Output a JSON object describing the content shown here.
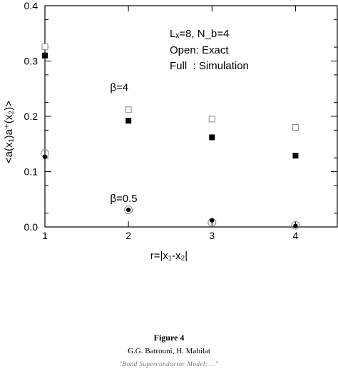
{
  "chart_data": {
    "type": "scatter",
    "xlabel": "r=|x₁-x₂|",
    "ylabel": "<a(x₁)a⁺(x₂)>",
    "xlim": [
      1,
      4.5
    ],
    "ylim": [
      0,
      0.4
    ],
    "x_ticks": [
      "1",
      "2",
      "3",
      "4"
    ],
    "y_ticks": [
      "0.0",
      "0.1",
      "0.2",
      "0.3",
      "0.4"
    ],
    "legend": {
      "line1": "Lₓ=8, N_b=4",
      "line2": "Open: Exact",
      "line3": "Full  : Simulation"
    },
    "annotations": [
      {
        "text": "β=4",
        "x": 1.78,
        "y": 0.246
      },
      {
        "text": "β=0.5",
        "x": 1.78,
        "y": 0.045
      }
    ],
    "series": [
      {
        "marker": "open-square",
        "points": [
          [
            1,
            0.326
          ],
          [
            2,
            0.212
          ],
          [
            3,
            0.195
          ],
          [
            4,
            0.18
          ]
        ]
      },
      {
        "marker": "filled-square",
        "points": [
          [
            1,
            0.31
          ],
          [
            2,
            0.192
          ],
          [
            3,
            0.162
          ],
          [
            4,
            0.129
          ]
        ]
      },
      {
        "marker": "open-circle",
        "points": [
          [
            1,
            0.133
          ],
          [
            2,
            0.031
          ],
          [
            3,
            0.008
          ],
          [
            4,
            0.003
          ]
        ]
      },
      {
        "marker": "filled-circle",
        "points": [
          [
            1,
            0.127
          ],
          [
            2,
            0.031
          ],
          [
            3,
            0.012
          ],
          [
            4,
            0.002
          ]
        ]
      }
    ]
  },
  "caption": {
    "figure": "Figure 4",
    "authors": "G.G. Batrouni, H. Mabilat",
    "footer": "\"Bond Superconductor Model: ...\""
  }
}
